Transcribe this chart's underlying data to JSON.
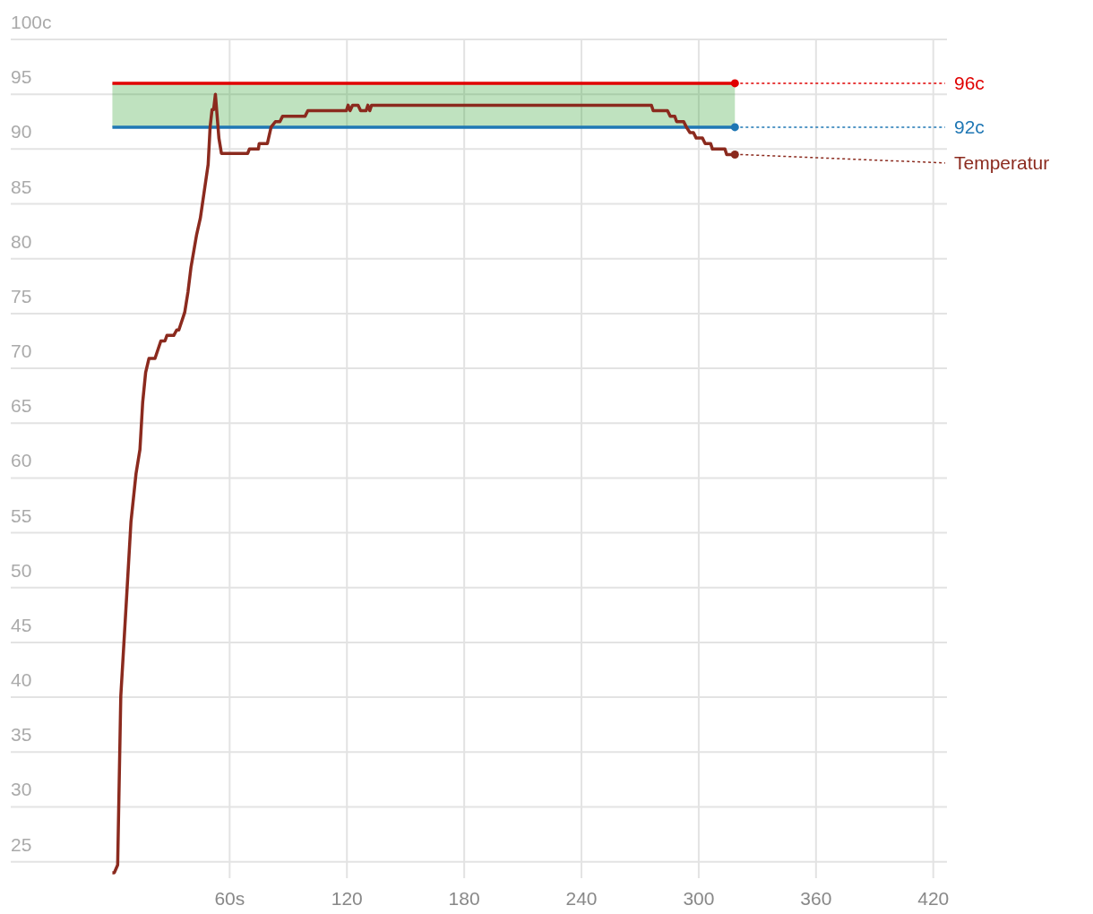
{
  "chart_data": {
    "type": "line",
    "xlim": [
      -52,
      427
    ],
    "xticks": [
      {
        "value": 60,
        "label": "60s"
      },
      120,
      180,
      240,
      300,
      360,
      420
    ],
    "ylim": [
      23.5,
      100
    ],
    "yticks": [
      25,
      30,
      35,
      40,
      45,
      50,
      55,
      60,
      65,
      70,
      75,
      80,
      85,
      90,
      95,
      {
        "value": 100,
        "label": "100c"
      }
    ],
    "grid": true,
    "bands": [
      {
        "axis": "y",
        "from": 92,
        "to": 96,
        "color": "#2ca02c"
      }
    ],
    "series": [
      {
        "name": "96c",
        "color": "#e00000",
        "x": [
          0,
          318.5
        ],
        "values": [
          96,
          96
        ]
      },
      {
        "name": "92c",
        "color": "#1f77b4",
        "x": [
          0,
          318.5
        ],
        "values": [
          92,
          92
        ]
      },
      {
        "name": "Temperatur",
        "color": "#8b2a1e",
        "x": [
          0,
          1,
          2.7,
          4.3,
          7.4,
          9.5,
          12.1,
          14.1,
          15.5,
          17,
          18.7,
          21.8,
          24.8,
          26.9,
          27.9,
          31.4,
          32.9,
          34,
          37,
          38.7,
          40.2,
          43.1,
          45,
          49,
          50,
          51,
          51.8,
          52.7,
          54.5,
          55.8,
          69.2,
          70.1,
          74.7,
          75.1,
          79.3,
          81.2,
          83.4,
          85.7,
          87.1,
          98.6,
          100,
          119.7,
          120.6,
          121.6,
          122.9,
          125.7,
          127,
          129.8,
          130.7,
          131.7,
          132.6,
          275.8,
          276.7,
          284,
          285.4,
          287.7,
          288.7,
          292.3,
          293.7,
          295.5,
          297.3,
          298.7,
          301.9,
          303.3,
          306.1,
          307,
          313.4,
          314.3,
          318.5
        ],
        "values": [
          24,
          24,
          24.7,
          40.1,
          49.5,
          56,
          60.4,
          62.6,
          66.9,
          69.6,
          70.9,
          70.9,
          72.5,
          72.5,
          73,
          73,
          73.5,
          73.5,
          75.1,
          77,
          79.2,
          82.2,
          83.7,
          88.6,
          92,
          93.6,
          93.6,
          95,
          91,
          89.6,
          89.6,
          90,
          90,
          90.5,
          90.5,
          92,
          92.5,
          92.5,
          93,
          93,
          93.5,
          93.5,
          94,
          93.5,
          94,
          94,
          93.5,
          93.5,
          94,
          93.5,
          94,
          94,
          93.5,
          93.5,
          93,
          93,
          92.5,
          92.5,
          92,
          91.5,
          91.5,
          91,
          91,
          90.5,
          90.5,
          90,
          90,
          89.5,
          89.5
        ]
      }
    ]
  }
}
